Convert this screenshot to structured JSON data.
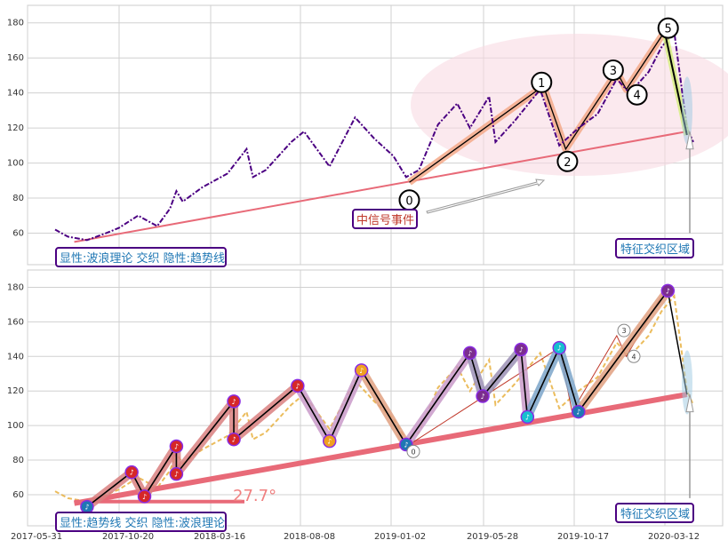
{
  "chart_data": [
    {
      "type": "line",
      "panel": "top",
      "ylim": [
        42,
        190
      ],
      "yticks": [
        60,
        80,
        100,
        120,
        140,
        160,
        180
      ],
      "grid": true,
      "caption": "显性:波浪理论 交织 隐性:趋势线",
      "region_label": "特征交织区域",
      "signal_label": "中信号事件",
      "price_series": [
        {
          "t": 0.0,
          "v": 62
        },
        {
          "t": 0.02,
          "v": 58
        },
        {
          "t": 0.05,
          "v": 56
        },
        {
          "t": 0.08,
          "v": 60
        },
        {
          "t": 0.1,
          "v": 63
        },
        {
          "t": 0.13,
          "v": 70
        },
        {
          "t": 0.16,
          "v": 64
        },
        {
          "t": 0.18,
          "v": 74
        },
        {
          "t": 0.19,
          "v": 84
        },
        {
          "t": 0.2,
          "v": 78
        },
        {
          "t": 0.23,
          "v": 86
        },
        {
          "t": 0.27,
          "v": 94
        },
        {
          "t": 0.3,
          "v": 108
        },
        {
          "t": 0.31,
          "v": 92
        },
        {
          "t": 0.33,
          "v": 96
        },
        {
          "t": 0.37,
          "v": 112
        },
        {
          "t": 0.39,
          "v": 118
        },
        {
          "t": 0.43,
          "v": 98
        },
        {
          "t": 0.47,
          "v": 126
        },
        {
          "t": 0.5,
          "v": 114
        },
        {
          "t": 0.53,
          "v": 104
        },
        {
          "t": 0.55,
          "v": 92
        },
        {
          "t": 0.57,
          "v": 96
        },
        {
          "t": 0.6,
          "v": 122
        },
        {
          "t": 0.63,
          "v": 134
        },
        {
          "t": 0.65,
          "v": 120
        },
        {
          "t": 0.68,
          "v": 138
        },
        {
          "t": 0.69,
          "v": 112
        },
        {
          "t": 0.72,
          "v": 124
        },
        {
          "t": 0.76,
          "v": 142
        },
        {
          "t": 0.79,
          "v": 110
        },
        {
          "t": 0.82,
          "v": 120
        },
        {
          "t": 0.85,
          "v": 128
        },
        {
          "t": 0.88,
          "v": 148
        },
        {
          "t": 0.9,
          "v": 140
        },
        {
          "t": 0.93,
          "v": 152
        },
        {
          "t": 0.95,
          "v": 166
        },
        {
          "t": 0.97,
          "v": 175
        },
        {
          "t": 0.99,
          "v": 120
        },
        {
          "t": 1.0,
          "v": 112
        }
      ],
      "wave_points": [
        {
          "label": "0",
          "t": 0.555,
          "v": 89
        },
        {
          "label": "1",
          "t": 0.765,
          "v": 144
        },
        {
          "label": "2",
          "t": 0.8,
          "v": 108
        },
        {
          "label": "3",
          "t": 0.88,
          "v": 152
        },
        {
          "label": "4",
          "t": 0.895,
          "v": 142
        },
        {
          "label": "5",
          "t": 0.955,
          "v": 175
        }
      ],
      "trendline": [
        {
          "t": 0.03,
          "v": 55
        },
        {
          "t": 0.99,
          "v": 118
        }
      ]
    },
    {
      "type": "line",
      "panel": "bottom",
      "ylim": [
        42,
        190
      ],
      "yticks": [
        60,
        80,
        100,
        120,
        140,
        160,
        180
      ],
      "grid": true,
      "caption": "显性:趋势线 交织 隐性:波浪理论",
      "region_label": "特征交织区域",
      "angle_label": "27.7°",
      "xticks": [
        "2017-05-31",
        "2017-10-20",
        "2018-03-16",
        "2018-08-08",
        "2019-01-02",
        "2019-05-28",
        "2019-10-17",
        "2020-03-12"
      ],
      "small_labels": [
        "0",
        "3",
        "4"
      ],
      "trendline": [
        {
          "t": 0.03,
          "v": 55
        },
        {
          "t": 0.99,
          "v": 118
        }
      ],
      "zigzag": [
        {
          "t": 0.05,
          "v": 53
        },
        {
          "t": 0.12,
          "v": 73
        },
        {
          "t": 0.14,
          "v": 59
        },
        {
          "t": 0.19,
          "v": 88
        },
        {
          "t": 0.19,
          "v": 72
        },
        {
          "t": 0.28,
          "v": 114
        },
        {
          "t": 0.28,
          "v": 92
        },
        {
          "t": 0.38,
          "v": 123
        },
        {
          "t": 0.43,
          "v": 91
        },
        {
          "t": 0.48,
          "v": 132
        },
        {
          "t": 0.55,
          "v": 89
        },
        {
          "t": 0.65,
          "v": 142
        },
        {
          "t": 0.67,
          "v": 117
        },
        {
          "t": 0.73,
          "v": 144
        },
        {
          "t": 0.74,
          "v": 105
        },
        {
          "t": 0.79,
          "v": 145
        },
        {
          "t": 0.82,
          "v": 108
        },
        {
          "t": 0.96,
          "v": 178
        }
      ]
    }
  ],
  "colors": {
    "price": "#4b0082",
    "price_bottom": "#e8b040",
    "trend": "#e86a78",
    "wave_fill": "#f4a582",
    "ellipse": "#f8d7de",
    "marker_red": "#d62728",
    "marker_blue": "#1f77b4",
    "marker_teal": "#17becf",
    "marker_orange": "#f0a020",
    "marker_purple": "#7b2d8e"
  }
}
